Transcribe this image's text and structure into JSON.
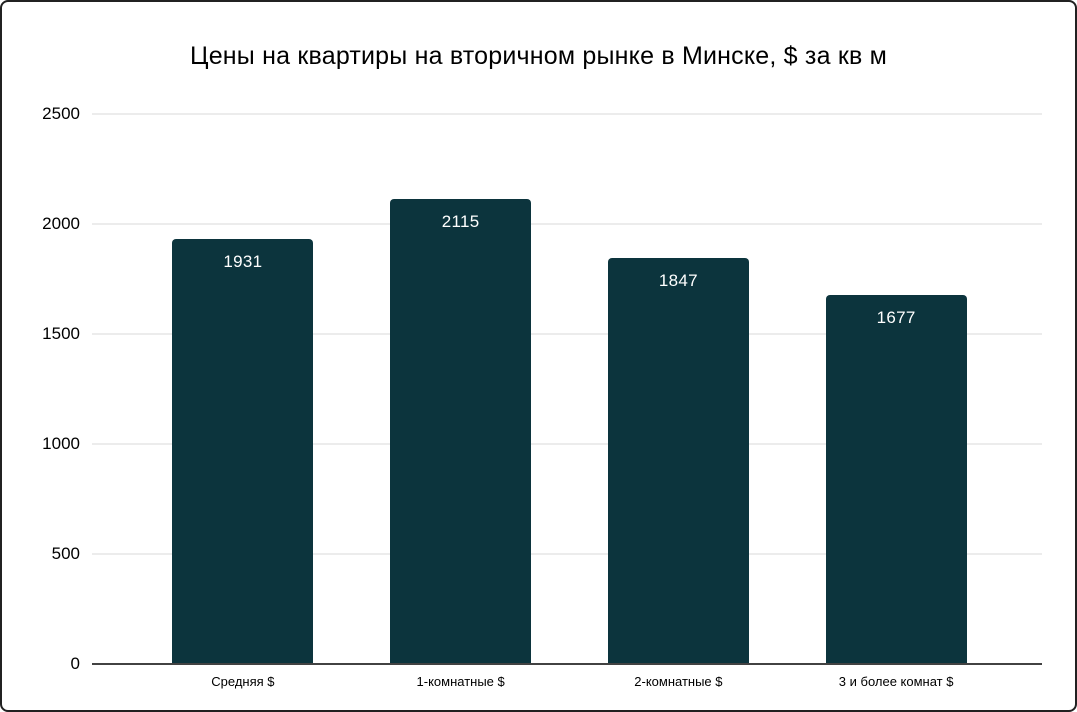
{
  "chart_data": {
    "type": "bar",
    "title": "Цены на квартиры на вторичном рынке в Минске, $ за кв м",
    "categories": [
      "Средняя $",
      "1-комнатные $",
      "2-комнатные $",
      "3 и более комнат $"
    ],
    "values": [
      1931,
      2115,
      1847,
      1677
    ],
    "xlabel": "",
    "ylabel": "",
    "ylim": [
      0,
      2500
    ],
    "yticks": [
      0,
      500,
      1000,
      1500,
      2000,
      2500
    ],
    "grid": true,
    "legend": false,
    "colors": {
      "bar": "#0c343d",
      "value_label": "#ffffff",
      "gridline": "#d9d9d9",
      "axis_line": "#424242",
      "text": "#000000",
      "background": "#ffffff",
      "frame_border": "#212121"
    }
  }
}
